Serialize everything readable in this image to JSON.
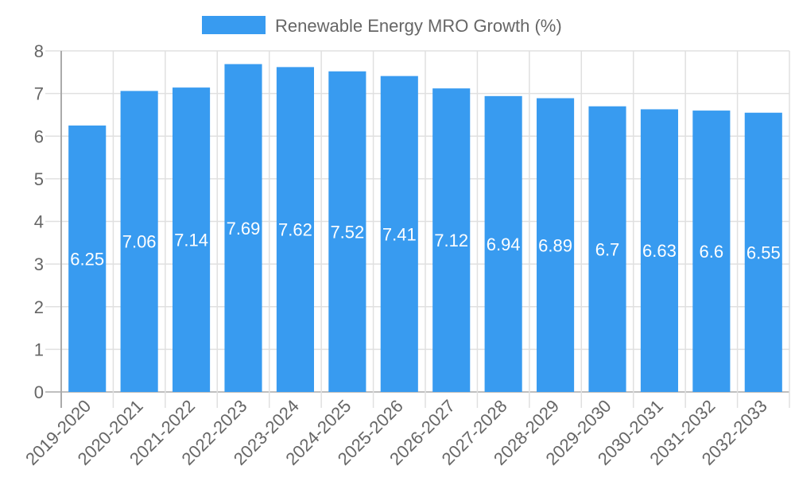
{
  "chart_data": {
    "type": "bar",
    "title": "",
    "xlabel": "",
    "ylabel": "",
    "legend": {
      "label": "Renewable Energy MRO Growth (%)",
      "placement": "top-center"
    },
    "categories": [
      "2019-2020",
      "2020-2021",
      "2021-2022",
      "2022-2023",
      "2023-2024",
      "2024-2025",
      "2025-2026",
      "2026-2027",
      "2027-2028",
      "2028-2029",
      "2029-2030",
      "2030-2031",
      "2031-2032",
      "2032-2033"
    ],
    "series": [
      {
        "name": "Renewable Energy MRO Growth (%)",
        "values": [
          6.25,
          7.06,
          7.14,
          7.69,
          7.62,
          7.52,
          7.41,
          7.12,
          6.94,
          6.89,
          6.7,
          6.63,
          6.6,
          6.55
        ]
      }
    ],
    "data_labels": [
      "6.25",
      "7.06",
      "7.14",
      "7.69",
      "7.62",
      "7.52",
      "7.41",
      "7.12",
      "6.94",
      "6.89",
      "6.7",
      "6.63",
      "6.6",
      "6.55"
    ],
    "ylim": [
      0,
      8
    ],
    "yticks": [
      "0",
      "1",
      "2",
      "3",
      "4",
      "5",
      "6",
      "7",
      "8"
    ],
    "grid": true,
    "colors": {
      "bar": "#389bf0",
      "grid": "#e0e0e0",
      "axis": "#aaaaaa",
      "text": "#666666",
      "label": "#ffffff"
    }
  }
}
